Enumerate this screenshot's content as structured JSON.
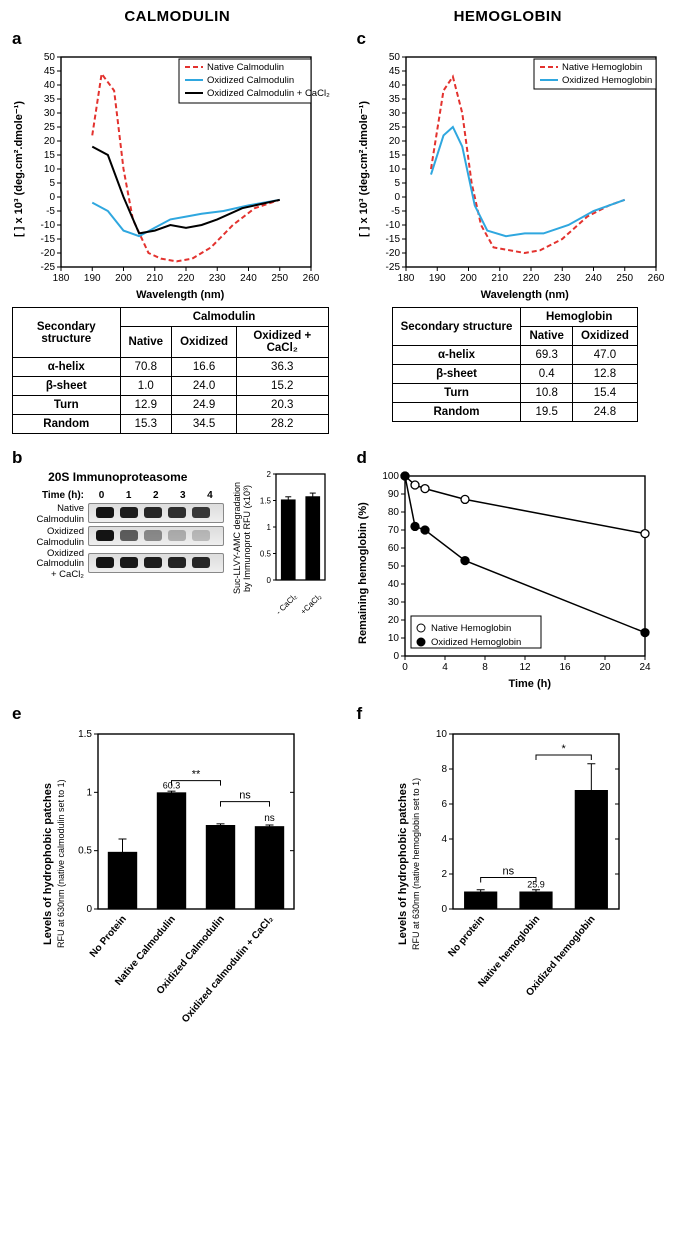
{
  "titles": {
    "left": "CALMODULIN",
    "right": "HEMOGLOBIN"
  },
  "colors": {
    "native_red": "#e3322e",
    "oxidized_blue": "#2fa7df",
    "black": "#000000",
    "bar_fill": "#000000",
    "grid": "#000000"
  },
  "panelA": {
    "label": "a",
    "ylabel": "[ ] x 10³ (deg.cm².dmole⁻¹)",
    "xlabel": "Wavelength (nm)",
    "legend": [
      "Native Calmodulin",
      "Oxidized Calmodulin",
      "Oxidized Calmodulin + CaCl₂"
    ],
    "xlim": [
      180,
      260
    ],
    "xtick": [
      180,
      190,
      200,
      210,
      220,
      230,
      240,
      250,
      260
    ],
    "ylim": [
      -25,
      50
    ],
    "ytick": [
      -25,
      -20,
      -15,
      -10,
      -5,
      0,
      5,
      10,
      15,
      20,
      25,
      30,
      35,
      40,
      45,
      50
    ],
    "series": {
      "native": {
        "color": "#e3322e",
        "dash": "5,3",
        "width": 2,
        "pts": [
          [
            190,
            22
          ],
          [
            193,
            44
          ],
          [
            197,
            38
          ],
          [
            200,
            10
          ],
          [
            203,
            -8
          ],
          [
            208,
            -20
          ],
          [
            212,
            -22
          ],
          [
            217,
            -23
          ],
          [
            222,
            -22
          ],
          [
            228,
            -18
          ],
          [
            235,
            -10
          ],
          [
            242,
            -4
          ],
          [
            250,
            -1
          ]
        ]
      },
      "oxidized": {
        "color": "#2fa7df",
        "dash": "",
        "width": 2,
        "pts": [
          [
            190,
            -2
          ],
          [
            195,
            -5
          ],
          [
            200,
            -12
          ],
          [
            205,
            -14
          ],
          [
            210,
            -11
          ],
          [
            215,
            -8
          ],
          [
            220,
            -7
          ],
          [
            225,
            -6
          ],
          [
            232,
            -5
          ],
          [
            240,
            -3
          ],
          [
            250,
            -1
          ]
        ]
      },
      "ox_cacl2": {
        "color": "#000000",
        "dash": "",
        "width": 2,
        "pts": [
          [
            190,
            18
          ],
          [
            195,
            15
          ],
          [
            200,
            0
          ],
          [
            205,
            -13
          ],
          [
            210,
            -12
          ],
          [
            215,
            -10
          ],
          [
            220,
            -11
          ],
          [
            225,
            -10
          ],
          [
            230,
            -8
          ],
          [
            238,
            -4
          ],
          [
            250,
            -1
          ]
        ]
      }
    },
    "table": {
      "group_header": "Calmodulin",
      "cols": [
        "Native",
        "Oxidized",
        "Oxidized + CaCl₂"
      ],
      "rows": [
        [
          "α-helix",
          "70.8",
          "16.6",
          "36.3"
        ],
        [
          "β-sheet",
          "1.0",
          "24.0",
          "15.2"
        ],
        [
          "Turn",
          "12.9",
          "24.9",
          "20.3"
        ],
        [
          "Random",
          "15.3",
          "34.5",
          "28.2"
        ]
      ],
      "row_header": "Secondary structure"
    }
  },
  "panelC": {
    "label": "c",
    "ylabel": "[ ] x 10³ (deg.cm².dmole⁻¹)",
    "xlabel": "Wavelength (nm)",
    "legend": [
      "Native Hemoglobin",
      "Oxidized Hemoglobin"
    ],
    "xlim": [
      180,
      260
    ],
    "xtick": [
      180,
      190,
      200,
      210,
      220,
      230,
      240,
      250,
      260
    ],
    "ylim": [
      -25,
      50
    ],
    "ytick": [
      -25,
      -20,
      -15,
      -10,
      -5,
      0,
      5,
      10,
      15,
      20,
      25,
      30,
      35,
      40,
      45,
      50
    ],
    "series": {
      "native": {
        "color": "#e3322e",
        "dash": "5,3",
        "width": 2,
        "pts": [
          [
            188,
            10
          ],
          [
            192,
            38
          ],
          [
            195,
            43
          ],
          [
            198,
            30
          ],
          [
            201,
            5
          ],
          [
            204,
            -10
          ],
          [
            208,
            -18
          ],
          [
            213,
            -19
          ],
          [
            218,
            -20
          ],
          [
            223,
            -19
          ],
          [
            230,
            -15
          ],
          [
            238,
            -7
          ],
          [
            245,
            -3
          ],
          [
            250,
            -1
          ]
        ]
      },
      "oxidized": {
        "color": "#2fa7df",
        "dash": "",
        "width": 2,
        "pts": [
          [
            188,
            8
          ],
          [
            192,
            22
          ],
          [
            195,
            25
          ],
          [
            198,
            18
          ],
          [
            202,
            -3
          ],
          [
            206,
            -12
          ],
          [
            212,
            -14
          ],
          [
            218,
            -13
          ],
          [
            224,
            -13
          ],
          [
            232,
            -10
          ],
          [
            240,
            -5
          ],
          [
            250,
            -1
          ]
        ]
      }
    },
    "table": {
      "group_header": "Hemoglobin",
      "cols": [
        "Native",
        "Oxidized"
      ],
      "rows": [
        [
          "α-helix",
          "69.3",
          "47.0"
        ],
        [
          "β-sheet",
          "0.4",
          "12.8"
        ],
        [
          "Turn",
          "10.8",
          "15.4"
        ],
        [
          "Random",
          "19.5",
          "24.8"
        ]
      ],
      "row_header": "Secondary structure"
    }
  },
  "panelB": {
    "label": "b",
    "title": "20S Immunoproteasome",
    "time_label": "Time (h):",
    "times": [
      "0",
      "1",
      "2",
      "3",
      "4"
    ],
    "rows": [
      {
        "name": "Native Calmodulin",
        "int": [
          1.0,
          0.95,
          0.9,
          0.85,
          0.8
        ]
      },
      {
        "name": "Oxidized Calmodulin",
        "int": [
          1.0,
          0.6,
          0.35,
          0.15,
          0.08
        ]
      },
      {
        "name": "Oxidized Calmodulin + CaCl₂",
        "int": [
          1.0,
          0.98,
          0.95,
          0.92,
          0.9
        ]
      }
    ],
    "bar": {
      "ylabel": "Suc-LLVY-AMC degradation by Immunoprot RFU (x10³)",
      "ylim": [
        0,
        2.0
      ],
      "ytick": [
        0,
        0.5,
        1.0,
        1.5,
        2.0
      ],
      "cats": [
        "- CaCl₂",
        "+CaCl₂"
      ],
      "vals": [
        1.52,
        1.58
      ],
      "err": [
        0.05,
        0.06
      ]
    }
  },
  "panelD": {
    "label": "d",
    "ylabel": "Remaining hemoglobin (%)",
    "xlabel": "Time (h)",
    "xlim": [
      0,
      24
    ],
    "xtick": [
      0,
      4,
      8,
      12,
      16,
      20,
      24
    ],
    "ylim": [
      0,
      100
    ],
    "ytick": [
      0,
      10,
      20,
      30,
      40,
      50,
      60,
      70,
      80,
      90,
      100
    ],
    "legend": [
      "Native Hemoglobin",
      "Oxidized Hemoglobin"
    ],
    "series": {
      "native": {
        "mark": "open",
        "pts": [
          [
            0,
            100
          ],
          [
            1,
            95
          ],
          [
            2,
            93
          ],
          [
            6,
            87
          ],
          [
            24,
            68
          ]
        ]
      },
      "oxidized": {
        "mark": "filled",
        "pts": [
          [
            0,
            100
          ],
          [
            1,
            72
          ],
          [
            2,
            70
          ],
          [
            6,
            53
          ],
          [
            24,
            13
          ]
        ]
      }
    }
  },
  "panelE": {
    "label": "e",
    "ylabel1": "Levels of hydrophobic patches",
    "ylabel2": "RFU at 630nm (native calmodulin set to 1)",
    "ylim": [
      0,
      1.5
    ],
    "ytick": [
      0,
      0.5,
      1.0,
      1.5
    ],
    "cats": [
      "No Protein",
      "Native Calmodulin",
      "Oxidized Calmodulin",
      "Oxidized calmodulin + CaCl₂"
    ],
    "vals": [
      0.49,
      1.0,
      0.72,
      0.71
    ],
    "err": [
      0.11,
      0.01,
      0.01,
      0.01
    ],
    "annot": [
      {
        "type": "bracket",
        "from": 1,
        "to": 2,
        "y": 1.1,
        "label": "**"
      },
      {
        "type": "bracket",
        "from": 2,
        "to": 3,
        "y": 0.92,
        "label": "ns"
      }
    ],
    "inside_labels": {
      "1": "60.3"
    },
    "top_labels": {
      "3": "ns"
    }
  },
  "panelF": {
    "label": "f",
    "ylabel1": "Levels of hydrophobic patches",
    "ylabel2": "RFU at 630nm (native hemoglobin set to 1)",
    "ylim": [
      0,
      10
    ],
    "ytick": [
      0,
      2,
      4,
      6,
      8,
      10
    ],
    "cats": [
      "No protein",
      "Native hemoglobin",
      "Oxidized hemoglobin"
    ],
    "vals": [
      1.0,
      1.0,
      6.8
    ],
    "err": [
      0.1,
      0.1,
      1.5
    ],
    "annot": [
      {
        "type": "bracket",
        "from": 0,
        "to": 1,
        "y": 1.8,
        "label": "ns"
      },
      {
        "type": "bracket",
        "from": 1,
        "to": 2,
        "y": 8.8,
        "label": "*"
      }
    ],
    "inside_labels": {
      "1": "25.9"
    }
  }
}
